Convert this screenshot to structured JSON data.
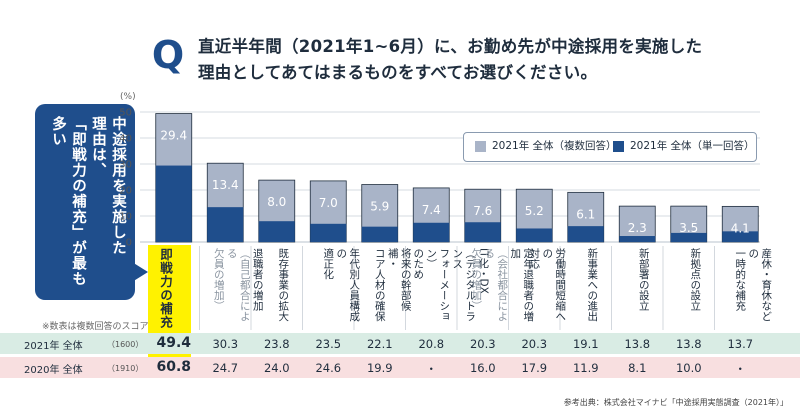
{
  "question": {
    "mark": "Q",
    "line1": "直近半年間（2021年1~6月）に、お勤め先が中途採用を実施した",
    "line2": "理由としてあてはまるものをすべてお選びください。"
  },
  "callout": {
    "text": "中途採用を実施した\n理由は、\n「即戦力の補充」が最も多い"
  },
  "note": "※数表は複数回答のスコア",
  "source": "参考出典：株式会社マイナビ「中途採用実態調査（2021年）」",
  "colors": {
    "multi": "#a9b4c8",
    "single": "#1f4e8c",
    "highlight": "#fff200",
    "row2021": "#d9ece4",
    "row2020": "#f8dfe0",
    "grid": "#c8cfd8"
  },
  "chart_data": {
    "type": "bar",
    "unit": "(%)",
    "ylim": [
      0,
      50
    ],
    "yticks": [
      "0",
      "10",
      "20",
      "30",
      "40",
      "50"
    ],
    "categories": [
      {
        "label": "即戦力の補充",
        "sub": ""
      },
      {
        "label": "退職者の増加",
        "sub": "（自己都合による\n欠員の増加）"
      },
      {
        "label": "既存事業の拡大",
        "sub": ""
      },
      {
        "label": "年代別人員構成の\n適正化",
        "sub": ""
      },
      {
        "label": "将来の幹部候補・\nコア人材の確保",
        "sub": ""
      },
      {
        "label": "IT化・DX\n（デジタルトランス\nフォーメーション）\nのため",
        "sub": ""
      },
      {
        "label": "定年退職者の増加",
        "sub": "（会社都合による\n欠員の増加）"
      },
      {
        "label": "労働時間短縮への\n対応",
        "sub": ""
      },
      {
        "label": "新事業への進出",
        "sub": ""
      },
      {
        "label": "新部署の設立",
        "sub": ""
      },
      {
        "label": "新拠点の設立",
        "sub": ""
      },
      {
        "label": "産休・育休などの\n一時的な補充",
        "sub": ""
      }
    ],
    "series": [
      {
        "name": "2021年 全体（複数回答）",
        "values": [
          49.4,
          30.3,
          23.8,
          23.5,
          22.1,
          20.8,
          20.3,
          20.3,
          19.1,
          13.8,
          13.8,
          13.7
        ]
      },
      {
        "name": "2021年 全体（単一回答）",
        "values": [
          29.4,
          13.4,
          8.0,
          7.0,
          5.9,
          7.4,
          7.6,
          5.2,
          6.1,
          2.3,
          3.5,
          4.1
        ]
      }
    ],
    "single_labels": [
      "29.4",
      "13.4",
      "8.0",
      "7.0",
      "5.9",
      "7.4",
      "7.6",
      "5.2",
      "6.1",
      "2.3",
      "3.5",
      "4.1"
    ],
    "table": {
      "rows": [
        {
          "label": "2021年 全体",
          "n": "（1600）",
          "values": [
            "49.4",
            "30.3",
            "23.8",
            "23.5",
            "22.1",
            "20.8",
            "20.3",
            "20.3",
            "19.1",
            "13.8",
            "13.8",
            "13.7"
          ]
        },
        {
          "label": "2020年 全体",
          "n": "（1910）",
          "values": [
            "60.8",
            "24.7",
            "24.0",
            "24.6",
            "19.9",
            "・",
            "16.0",
            "17.9",
            "11.9",
            "8.1",
            "10.0",
            "・"
          ]
        }
      ]
    }
  }
}
